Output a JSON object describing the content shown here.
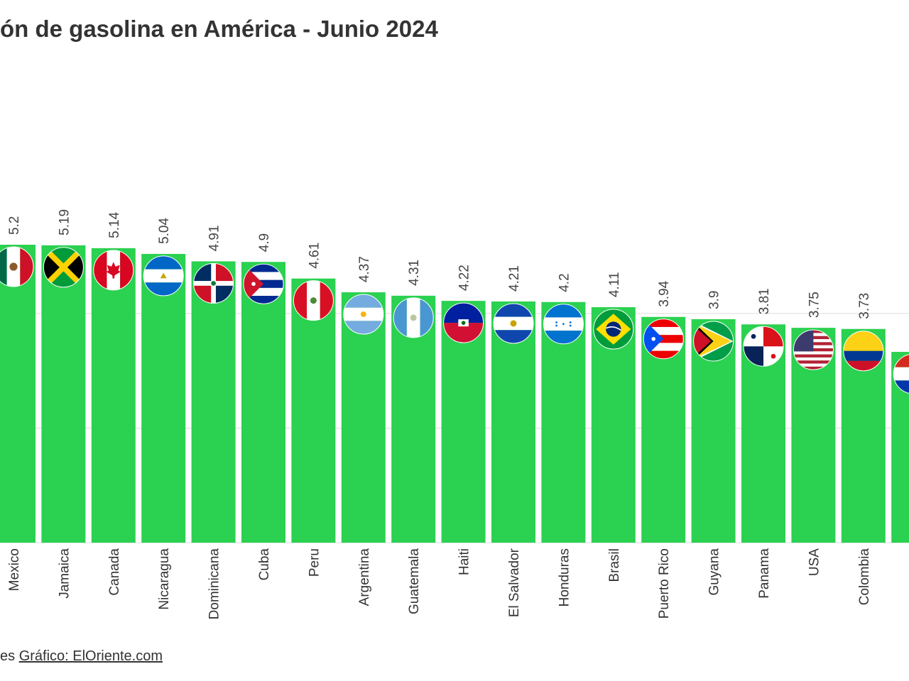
{
  "title": "ón de gasolina en América - Junio 2024",
  "footer": {
    "source_fragment": "es",
    "credit": "Gráfico: ElOriente.com"
  },
  "colors": {
    "bar": "#2bd150",
    "grid": "#dcdcdc",
    "text": "#333333"
  },
  "chart_data": {
    "type": "bar",
    "title": "ón de gasolina en América - Junio 2024",
    "xlabel": "",
    "ylabel": "",
    "ylim": [
      0,
      6.5
    ],
    "grid": true,
    "categories": [
      "Mexico",
      "Jamaica",
      "Canada",
      "Nicaragua",
      "Dominicana",
      "Cuba",
      "Peru",
      "Argentina",
      "Guatemala",
      "Haiti",
      "El Salvador",
      "Honduras",
      "Brasil",
      "Puerto Rico",
      "Guyana",
      "Panama",
      "USA",
      "Colombia",
      ""
    ],
    "values": [
      5.2,
      5.19,
      5.14,
      5.04,
      4.91,
      4.9,
      4.61,
      4.37,
      4.31,
      4.22,
      4.21,
      4.2,
      4.11,
      3.94,
      3.9,
      3.81,
      3.75,
      3.73,
      3.33
    ],
    "value_labels": [
      "5.2",
      "5.19",
      "5.14",
      "5.04",
      "4.91",
      "4.9",
      "4.61",
      "4.37",
      "4.31",
      "4.22",
      "4.21",
      "4.2",
      "4.11",
      "3.94",
      "3.9",
      "3.81",
      "3.75",
      "3.73",
      ""
    ],
    "flags": [
      "mexico-flag-icon",
      "jamaica-flag-icon",
      "canada-flag-icon",
      "nicaragua-flag-icon",
      "dominican-republic-flag-icon",
      "cuba-flag-icon",
      "peru-flag-icon",
      "argentina-flag-icon",
      "guatemala-flag-icon",
      "haiti-flag-icon",
      "el-salvador-flag-icon",
      "honduras-flag-icon",
      "brazil-flag-icon",
      "puerto-rico-flag-icon",
      "guyana-flag-icon",
      "panama-flag-icon",
      "usa-flag-icon",
      "colombia-flag-icon",
      "paraguay-flag-icon"
    ]
  }
}
